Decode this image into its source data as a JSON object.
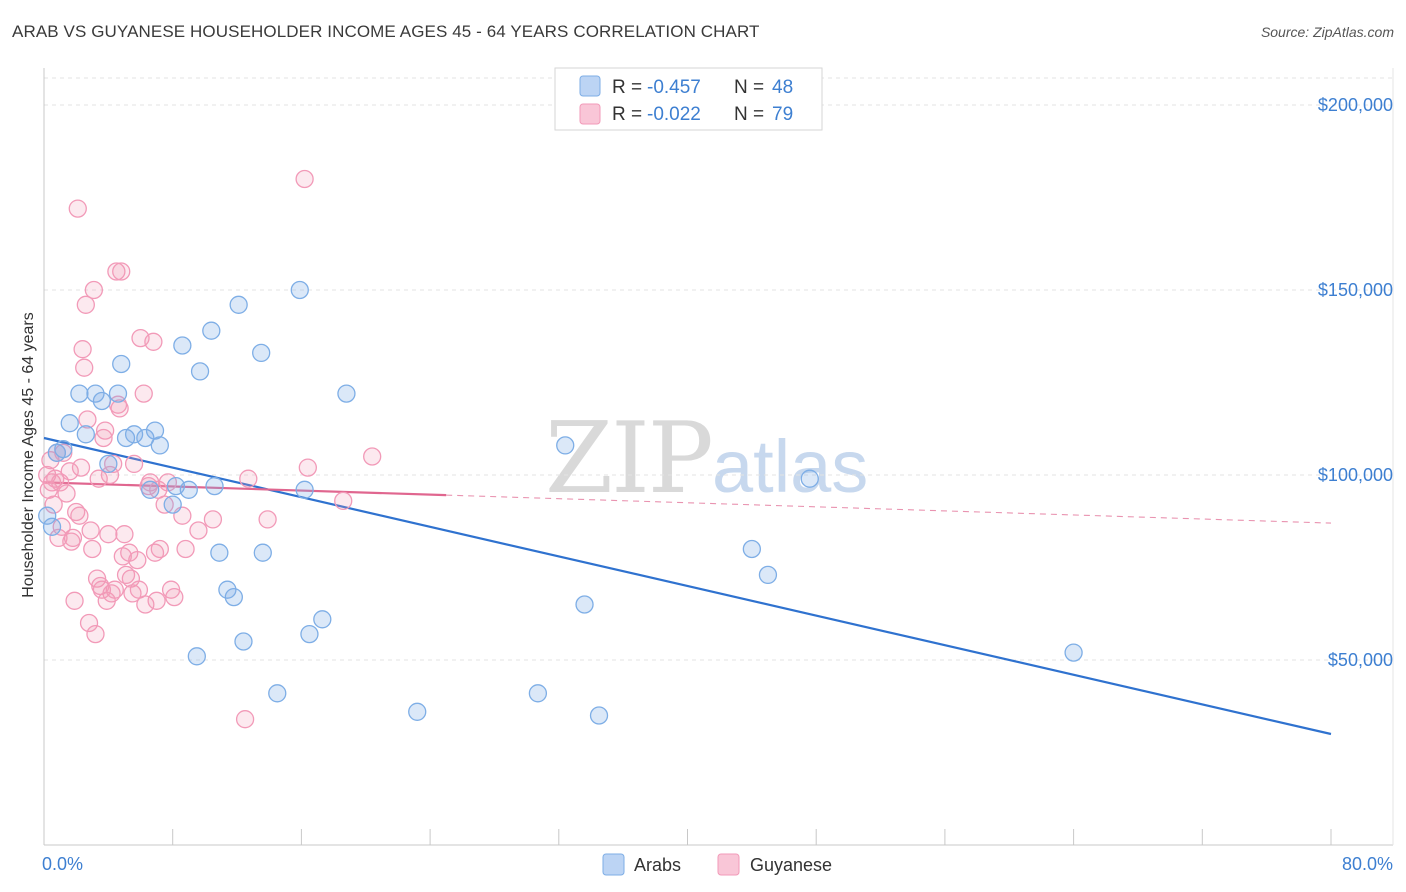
{
  "title": "ARAB VS GUYANESE HOUSEHOLDER INCOME AGES 45 - 64 YEARS CORRELATION CHART",
  "source": "Source: ZipAtlas.com",
  "watermark": {
    "zip": "ZIP",
    "atlas": "atlas"
  },
  "chart_data": {
    "type": "scatter",
    "xlabel": "",
    "ylabel": "Householder Income Ages 45 - 64 years",
    "xlim": [
      0,
      80
    ],
    "ylim": [
      0,
      210000
    ],
    "x_tick_labels": [
      "0.0%",
      "80.0%"
    ],
    "y_ticks": [
      50000,
      100000,
      150000,
      200000
    ],
    "y_tick_labels": [
      "$50,000",
      "$100,000",
      "$150,000",
      "$200,000"
    ],
    "grid": true,
    "legend_top": [
      {
        "r_label": "R =",
        "r_value": "-0.457",
        "n_label": "N =",
        "n_value": "48"
      },
      {
        "r_label": "R =",
        "r_value": "-0.022",
        "n_label": "N =",
        "n_value": "79"
      }
    ],
    "series": [
      {
        "name": "Arabs",
        "color": "#7eaee6",
        "trend_color": "#2f72cf",
        "trend": {
          "x0": 0,
          "y0": 110000,
          "x1": 80,
          "y1": 30000,
          "solid_until": 80
        },
        "points": [
          [
            0.2,
            89000
          ],
          [
            0.5,
            86000
          ],
          [
            0.8,
            106000
          ],
          [
            1.2,
            107000
          ],
          [
            1.6,
            114000
          ],
          [
            2.2,
            122000
          ],
          [
            2.6,
            111000
          ],
          [
            3.2,
            122000
          ],
          [
            3.6,
            120000
          ],
          [
            4.0,
            103000
          ],
          [
            4.8,
            130000
          ],
          [
            4.6,
            122000
          ],
          [
            5.1,
            110000
          ],
          [
            5.6,
            111000
          ],
          [
            6.3,
            110000
          ],
          [
            6.6,
            96000
          ],
          [
            6.9,
            112000
          ],
          [
            7.2,
            108000
          ],
          [
            8.0,
            92000
          ],
          [
            8.2,
            97000
          ],
          [
            8.6,
            135000
          ],
          [
            9.0,
            96000
          ],
          [
            9.5,
            51000
          ],
          [
            9.7,
            128000
          ],
          [
            10.4,
            139000
          ],
          [
            10.6,
            97000
          ],
          [
            10.9,
            79000
          ],
          [
            11.4,
            69000
          ],
          [
            11.8,
            67000
          ],
          [
            12.1,
            146000
          ],
          [
            12.4,
            55000
          ],
          [
            13.5,
            133000
          ],
          [
            13.6,
            79000
          ],
          [
            14.5,
            41000
          ],
          [
            15.9,
            150000
          ],
          [
            16.2,
            96000
          ],
          [
            16.5,
            57000
          ],
          [
            17.3,
            61000
          ],
          [
            18.8,
            122000
          ],
          [
            23.2,
            36000
          ],
          [
            30.7,
            41000
          ],
          [
            32.4,
            108000
          ],
          [
            33.6,
            65000
          ],
          [
            34.5,
            35000
          ],
          [
            44.0,
            80000
          ],
          [
            45.0,
            73000
          ],
          [
            47.6,
            99000
          ],
          [
            64.0,
            52000
          ]
        ]
      },
      {
        "name": "Guyanese",
        "color": "#f29ab8",
        "trend_color": "#e0668f",
        "trend": {
          "x0": 0,
          "y0": 98000,
          "x1": 80,
          "y1": 87000,
          "solid_until": 25
        },
        "points": [
          [
            0.2,
            100000
          ],
          [
            0.3,
            96000
          ],
          [
            0.4,
            104000
          ],
          [
            0.5,
            98000
          ],
          [
            0.6,
            92000
          ],
          [
            0.7,
            99000
          ],
          [
            0.8,
            106000
          ],
          [
            0.9,
            83000
          ],
          [
            1.0,
            98000
          ],
          [
            1.1,
            86000
          ],
          [
            1.2,
            106000
          ],
          [
            1.4,
            95000
          ],
          [
            1.6,
            101000
          ],
          [
            1.7,
            82000
          ],
          [
            1.8,
            83000
          ],
          [
            1.9,
            66000
          ],
          [
            2.0,
            90000
          ],
          [
            2.1,
            172000
          ],
          [
            2.2,
            89000
          ],
          [
            2.3,
            102000
          ],
          [
            2.4,
            134000
          ],
          [
            2.5,
            129000
          ],
          [
            2.6,
            146000
          ],
          [
            2.7,
            115000
          ],
          [
            2.8,
            60000
          ],
          [
            2.9,
            85000
          ],
          [
            3.0,
            80000
          ],
          [
            3.1,
            150000
          ],
          [
            3.2,
            57000
          ],
          [
            3.3,
            72000
          ],
          [
            3.4,
            99000
          ],
          [
            3.5,
            70000
          ],
          [
            3.6,
            69000
          ],
          [
            3.7,
            110000
          ],
          [
            3.8,
            112000
          ],
          [
            3.9,
            66000
          ],
          [
            4.0,
            84000
          ],
          [
            4.1,
            100000
          ],
          [
            4.2,
            68000
          ],
          [
            4.3,
            103000
          ],
          [
            4.4,
            69000
          ],
          [
            4.5,
            155000
          ],
          [
            4.6,
            119000
          ],
          [
            4.7,
            118000
          ],
          [
            4.8,
            155000
          ],
          [
            4.9,
            78000
          ],
          [
            5.0,
            84000
          ],
          [
            5.1,
            73000
          ],
          [
            5.3,
            79000
          ],
          [
            5.4,
            72000
          ],
          [
            5.5,
            68000
          ],
          [
            5.6,
            103000
          ],
          [
            5.8,
            77000
          ],
          [
            5.9,
            69000
          ],
          [
            6.0,
            137000
          ],
          [
            6.2,
            122000
          ],
          [
            6.3,
            65000
          ],
          [
            6.5,
            97000
          ],
          [
            6.6,
            98000
          ],
          [
            6.8,
            136000
          ],
          [
            6.9,
            79000
          ],
          [
            7.0,
            66000
          ],
          [
            7.1,
            96000
          ],
          [
            7.2,
            80000
          ],
          [
            7.5,
            92000
          ],
          [
            7.7,
            98000
          ],
          [
            7.9,
            69000
          ],
          [
            8.1,
            67000
          ],
          [
            8.6,
            89000
          ],
          [
            8.8,
            80000
          ],
          [
            9.6,
            85000
          ],
          [
            10.5,
            88000
          ],
          [
            12.5,
            34000
          ],
          [
            12.7,
            99000
          ],
          [
            13.9,
            88000
          ],
          [
            16.2,
            180000
          ],
          [
            16.4,
            102000
          ],
          [
            18.6,
            93000
          ],
          [
            20.4,
            105000
          ]
        ]
      }
    ]
  }
}
